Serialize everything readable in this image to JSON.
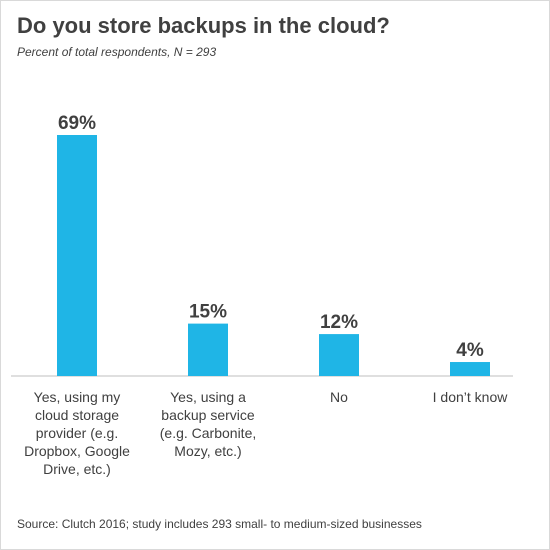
{
  "chart_data": {
    "type": "bar",
    "title": "Do you store backups in the cloud?",
    "subtitle": "Percent of total respondents, N = 293",
    "categories": [
      "Yes, using my cloud storage provider (e.g. Dropbox, Google Drive, etc.)",
      "Yes, using a backup service (e.g. Carbonite, Mozy, etc.)",
      "No",
      "I don't know"
    ],
    "category_lines": [
      [
        "Yes, using my",
        "cloud storage",
        "provider (e.g.",
        "Dropbox, Google",
        "Drive, etc.)"
      ],
      [
        "Yes, using a",
        "backup service",
        "(e.g. Carbonite,",
        "Mozy, etc.)"
      ],
      [
        "No"
      ],
      [
        "I don’t know"
      ]
    ],
    "values": [
      69,
      15,
      12,
      4
    ],
    "data_labels": [
      "69%",
      "15%",
      "12%",
      "4%"
    ],
    "ylim": [
      0,
      69
    ],
    "grid": false,
    "bar_color": "#1fb5e6",
    "source": "Source: Clutch 2016; study includes 293 small- to medium-sized businesses"
  }
}
